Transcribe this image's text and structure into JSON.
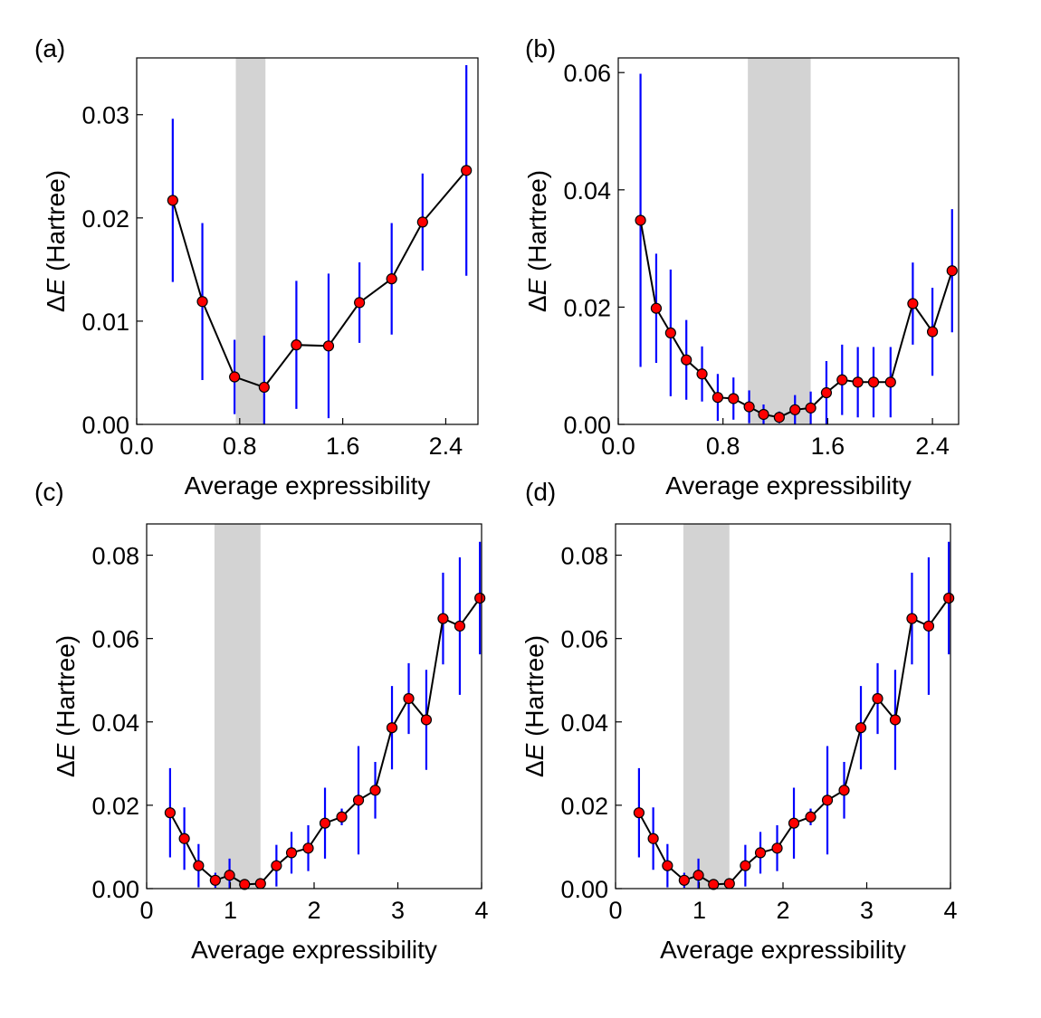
{
  "figure": {
    "background": "#ffffff"
  },
  "colors": {
    "line": "#000000",
    "marker_fill": "#ff0000",
    "marker_edge": "#000000",
    "errorbar": "#0000ff",
    "shade": "#d3d3d3",
    "axes": "#000000"
  },
  "chart_data": [
    {
      "panel_label": "(a)",
      "type": "line",
      "xlabel": "Average expressibility",
      "ylabel_prefix": "Δ",
      "ylabel_var": "E",
      "ylabel_suffix": " (Hartree)",
      "xlim": [
        0.0,
        2.65
      ],
      "ylim": [
        0.0,
        0.0355
      ],
      "xticks": [
        0.0,
        0.8,
        1.6,
        2.4
      ],
      "xtick_labels": [
        "0.0",
        "0.8",
        "1.6",
        "2.4"
      ],
      "yticks": [
        0.0,
        0.01,
        0.02,
        0.03
      ],
      "ytick_labels": [
        "0.00",
        "0.01",
        "0.02",
        "0.03"
      ],
      "shaded_region": [
        0.77,
        1.0
      ],
      "series": [
        {
          "name": "ΔE",
          "x": [
            0.28,
            0.51,
            0.76,
            0.99,
            1.24,
            1.49,
            1.73,
            1.98,
            2.22,
            2.56
          ],
          "y": [
            0.0217,
            0.0119,
            0.0046,
            0.0036,
            0.0077,
            0.0076,
            0.0118,
            0.0141,
            0.0196,
            0.0246
          ],
          "err": [
            0.0079,
            0.0076,
            0.0036,
            0.005,
            0.0062,
            0.007,
            0.0039,
            0.0054,
            0.0047,
            0.0102
          ]
        }
      ]
    },
    {
      "panel_label": "(b)",
      "type": "line",
      "xlabel": "Average expressibility",
      "ylabel_prefix": "Δ",
      "ylabel_var": "E",
      "ylabel_suffix": " (Hartree)",
      "xlim": [
        0.0,
        2.6
      ],
      "ylim": [
        0.0,
        0.0625
      ],
      "xticks": [
        0.0,
        0.8,
        1.6,
        2.4
      ],
      "xtick_labels": [
        "0.0",
        "0.8",
        "1.6",
        "2.4"
      ],
      "yticks": [
        0.0,
        0.02,
        0.04,
        0.06
      ],
      "ytick_labels": [
        "0.00",
        "0.02",
        "0.04",
        "0.06"
      ],
      "shaded_region": [
        0.99,
        1.47
      ],
      "series": [
        {
          "name": "ΔE",
          "x": [
            0.17,
            0.29,
            0.4,
            0.52,
            0.64,
            0.76,
            0.88,
            1.0,
            1.11,
            1.23,
            1.35,
            1.47,
            1.59,
            1.71,
            1.83,
            1.95,
            2.08,
            2.25,
            2.4,
            2.55
          ],
          "y": [
            0.0348,
            0.0198,
            0.0156,
            0.011,
            0.0086,
            0.0046,
            0.0044,
            0.003,
            0.0017,
            0.0012,
            0.0025,
            0.0028,
            0.0054,
            0.0076,
            0.0072,
            0.0072,
            0.0072,
            0.0206,
            0.0158,
            0.0262
          ],
          "err": [
            0.025,
            0.0093,
            0.0108,
            0.0068,
            0.0047,
            0.004,
            0.0036,
            0.0028,
            0.0017,
            0.001,
            0.0025,
            0.0028,
            0.0054,
            0.006,
            0.006,
            0.006,
            0.006,
            0.007,
            0.0075,
            0.0105
          ]
        }
      ]
    },
    {
      "panel_label": "(c)",
      "type": "line",
      "xlabel": "Average expressibility",
      "ylabel_prefix": "Δ",
      "ylabel_var": "E",
      "ylabel_suffix": " (Hartree)",
      "xlim": [
        0.0,
        4.0
      ],
      "ylim": [
        0.0,
        0.0875
      ],
      "xticks": [
        0,
        1,
        2,
        3,
        4
      ],
      "xtick_labels": [
        "0",
        "1",
        "2",
        "3",
        "4"
      ],
      "yticks": [
        0.0,
        0.02,
        0.04,
        0.06,
        0.08
      ],
      "ytick_labels": [
        "0.00",
        "0.02",
        "0.04",
        "0.06",
        "0.08"
      ],
      "shaded_region": [
        0.81,
        1.36
      ],
      "series": [
        {
          "name": "ΔE",
          "x": [
            0.28,
            0.45,
            0.62,
            0.82,
            0.99,
            1.17,
            1.36,
            1.55,
            1.73,
            1.93,
            2.13,
            2.33,
            2.53,
            2.73,
            2.93,
            3.13,
            3.34,
            3.54,
            3.74,
            3.98
          ],
          "y": [
            0.0182,
            0.012,
            0.0055,
            0.002,
            0.0032,
            0.001,
            0.0012,
            0.0055,
            0.0086,
            0.0097,
            0.0157,
            0.0172,
            0.0212,
            0.0236,
            0.0386,
            0.0456,
            0.0405,
            0.0648,
            0.063,
            0.0697
          ],
          "err": [
            0.0107,
            0.0075,
            0.0052,
            0.0018,
            0.004,
            0.001,
            0.001,
            0.005,
            0.005,
            0.0055,
            0.0085,
            0.002,
            0.013,
            0.0068,
            0.01,
            0.0085,
            0.012,
            0.011,
            0.0165,
            0.0135
          ]
        }
      ]
    },
    {
      "panel_label": "(d)",
      "type": "line",
      "xlabel": "Average expressibility",
      "ylabel_prefix": "Δ",
      "ylabel_var": "E",
      "ylabel_suffix": " (Hartree)",
      "xlim": [
        0.0,
        4.0
      ],
      "ylim": [
        0.0,
        0.0875
      ],
      "xticks": [
        0,
        1,
        2,
        3,
        4
      ],
      "xtick_labels": [
        "0",
        "1",
        "2",
        "3",
        "4"
      ],
      "yticks": [
        0.0,
        0.02,
        0.04,
        0.06,
        0.08
      ],
      "ytick_labels": [
        "0.00",
        "0.02",
        "0.04",
        "0.06",
        "0.08"
      ],
      "shaded_region": [
        0.81,
        1.36
      ],
      "series": [
        {
          "name": "ΔE",
          "x": [
            0.28,
            0.45,
            0.62,
            0.82,
            0.99,
            1.17,
            1.36,
            1.55,
            1.73,
            1.93,
            2.13,
            2.33,
            2.53,
            2.73,
            2.93,
            3.13,
            3.34,
            3.54,
            3.74,
            3.98
          ],
          "y": [
            0.0182,
            0.012,
            0.0055,
            0.002,
            0.0032,
            0.001,
            0.0012,
            0.0055,
            0.0086,
            0.0097,
            0.0157,
            0.0172,
            0.0212,
            0.0236,
            0.0386,
            0.0456,
            0.0405,
            0.0648,
            0.063,
            0.0697
          ],
          "err": [
            0.0107,
            0.0075,
            0.0052,
            0.0018,
            0.004,
            0.001,
            0.001,
            0.005,
            0.005,
            0.0055,
            0.0085,
            0.002,
            0.013,
            0.0068,
            0.01,
            0.0085,
            0.012,
            0.011,
            0.0165,
            0.0135
          ]
        }
      ]
    }
  ]
}
